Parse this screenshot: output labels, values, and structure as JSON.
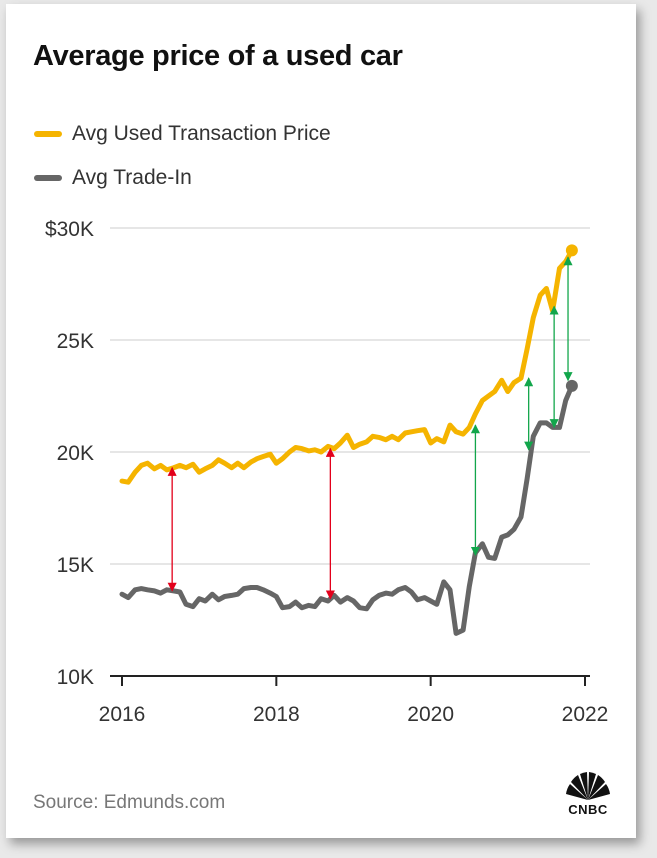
{
  "title": "Average price of a used car",
  "source": "Source: Edmunds.com",
  "brand": "CNBC",
  "colors": {
    "used": "#f5b400",
    "trade": "#666666",
    "gridline": "#cccccc",
    "red_arrow": "#e3001b",
    "green_arrow": "#12a64b"
  },
  "chart_data": {
    "type": "line",
    "title": "Average price of a used car",
    "xlabel": "",
    "ylabel": "",
    "xlim": [
      2016,
      2022
    ],
    "ylim": [
      10000,
      30000
    ],
    "x_ticks": [
      2016,
      2018,
      2020,
      2022
    ],
    "x_tick_labels": [
      "2016",
      "2018",
      "2020",
      "2022"
    ],
    "y_ticks": [
      10000,
      15000,
      20000,
      25000,
      30000
    ],
    "y_tick_labels": [
      "10K",
      "15K",
      "20K",
      "25K",
      "$30K"
    ],
    "grid": "horizontal",
    "legend": "top-left",
    "series": [
      {
        "name": "Avg Used Transaction Price",
        "color": "#f5b400",
        "end_marker": true,
        "points": [
          [
            2016.0,
            18700
          ],
          [
            2016.08,
            18650
          ],
          [
            2016.17,
            19100
          ],
          [
            2016.25,
            19400
          ],
          [
            2016.33,
            19500
          ],
          [
            2016.42,
            19250
          ],
          [
            2016.5,
            19400
          ],
          [
            2016.58,
            19200
          ],
          [
            2016.67,
            19300
          ],
          [
            2016.75,
            19400
          ],
          [
            2016.83,
            19300
          ],
          [
            2016.92,
            19450
          ],
          [
            2017.0,
            19100
          ],
          [
            2017.08,
            19250
          ],
          [
            2017.17,
            19400
          ],
          [
            2017.25,
            19650
          ],
          [
            2017.33,
            19500
          ],
          [
            2017.42,
            19300
          ],
          [
            2017.5,
            19500
          ],
          [
            2017.58,
            19300
          ],
          [
            2017.67,
            19550
          ],
          [
            2017.75,
            19700
          ],
          [
            2017.83,
            19800
          ],
          [
            2017.92,
            19900
          ],
          [
            2018.0,
            19500
          ],
          [
            2018.08,
            19700
          ],
          [
            2018.17,
            20000
          ],
          [
            2018.25,
            20200
          ],
          [
            2018.33,
            20150
          ],
          [
            2018.42,
            20050
          ],
          [
            2018.5,
            20100
          ],
          [
            2018.58,
            20000
          ],
          [
            2018.67,
            20250
          ],
          [
            2018.75,
            20150
          ],
          [
            2018.83,
            20400
          ],
          [
            2018.92,
            20750
          ],
          [
            2019.0,
            20200
          ],
          [
            2019.08,
            20350
          ],
          [
            2019.17,
            20450
          ],
          [
            2019.25,
            20700
          ],
          [
            2019.33,
            20650
          ],
          [
            2019.42,
            20550
          ],
          [
            2019.5,
            20700
          ],
          [
            2019.58,
            20550
          ],
          [
            2019.67,
            20850
          ],
          [
            2019.75,
            20900
          ],
          [
            2019.83,
            20950
          ],
          [
            2019.92,
            21000
          ],
          [
            2020.0,
            20400
          ],
          [
            2020.08,
            20600
          ],
          [
            2020.17,
            20450
          ],
          [
            2020.25,
            21200
          ],
          [
            2020.33,
            20900
          ],
          [
            2020.42,
            20800
          ],
          [
            2020.5,
            21100
          ],
          [
            2020.58,
            21700
          ],
          [
            2020.67,
            22300
          ],
          [
            2020.75,
            22500
          ],
          [
            2020.83,
            22700
          ],
          [
            2020.92,
            23200
          ],
          [
            2021.0,
            22700
          ],
          [
            2021.08,
            23100
          ],
          [
            2021.17,
            23300
          ],
          [
            2021.25,
            24600
          ],
          [
            2021.33,
            26000
          ],
          [
            2021.42,
            27000
          ],
          [
            2021.5,
            27300
          ],
          [
            2021.58,
            26300
          ],
          [
            2021.67,
            28200
          ],
          [
            2021.75,
            28500
          ],
          [
            2021.83,
            29000
          ]
        ]
      },
      {
        "name": "Avg Trade-In",
        "color": "#666666",
        "end_marker": true,
        "points": [
          [
            2016.0,
            13650
          ],
          [
            2016.08,
            13500
          ],
          [
            2016.17,
            13850
          ],
          [
            2016.25,
            13900
          ],
          [
            2016.33,
            13850
          ],
          [
            2016.42,
            13800
          ],
          [
            2016.5,
            13700
          ],
          [
            2016.58,
            13850
          ],
          [
            2016.67,
            13800
          ],
          [
            2016.75,
            13750
          ],
          [
            2016.83,
            13200
          ],
          [
            2016.92,
            13100
          ],
          [
            2017.0,
            13450
          ],
          [
            2017.08,
            13350
          ],
          [
            2017.17,
            13650
          ],
          [
            2017.25,
            13400
          ],
          [
            2017.33,
            13550
          ],
          [
            2017.42,
            13600
          ],
          [
            2017.5,
            13650
          ],
          [
            2017.58,
            13900
          ],
          [
            2017.67,
            13950
          ],
          [
            2017.75,
            13950
          ],
          [
            2017.83,
            13850
          ],
          [
            2017.92,
            13700
          ],
          [
            2018.0,
            13550
          ],
          [
            2018.08,
            13050
          ],
          [
            2018.17,
            13100
          ],
          [
            2018.25,
            13300
          ],
          [
            2018.33,
            13050
          ],
          [
            2018.42,
            13150
          ],
          [
            2018.5,
            13100
          ],
          [
            2018.58,
            13450
          ],
          [
            2018.67,
            13350
          ],
          [
            2018.75,
            13600
          ],
          [
            2018.83,
            13300
          ],
          [
            2018.92,
            13500
          ],
          [
            2019.0,
            13350
          ],
          [
            2019.08,
            13050
          ],
          [
            2019.17,
            13000
          ],
          [
            2019.25,
            13400
          ],
          [
            2019.33,
            13600
          ],
          [
            2019.42,
            13700
          ],
          [
            2019.5,
            13650
          ],
          [
            2019.58,
            13850
          ],
          [
            2019.67,
            13950
          ],
          [
            2019.75,
            13750
          ],
          [
            2019.83,
            13400
          ],
          [
            2019.92,
            13500
          ],
          [
            2020.0,
            13350
          ],
          [
            2020.08,
            13200
          ],
          [
            2020.17,
            14200
          ],
          [
            2020.25,
            13850
          ],
          [
            2020.33,
            11900
          ],
          [
            2020.42,
            12050
          ],
          [
            2020.5,
            14000
          ],
          [
            2020.58,
            15500
          ],
          [
            2020.67,
            15900
          ],
          [
            2020.75,
            15300
          ],
          [
            2020.83,
            15250
          ],
          [
            2020.92,
            16200
          ],
          [
            2021.0,
            16300
          ],
          [
            2021.08,
            16550
          ],
          [
            2021.17,
            17100
          ],
          [
            2021.25,
            18800
          ],
          [
            2021.33,
            20700
          ],
          [
            2021.42,
            21300
          ],
          [
            2021.5,
            21300
          ],
          [
            2021.58,
            21100
          ],
          [
            2021.67,
            21100
          ],
          [
            2021.75,
            22300
          ],
          [
            2021.83,
            22950
          ]
        ]
      }
    ],
    "annotations": [
      {
        "type": "double-arrow",
        "color": "red",
        "x": 2016.65,
        "y1": 19300,
        "y2": 13800
      },
      {
        "type": "double-arrow",
        "color": "red",
        "x": 2018.7,
        "y1": 20150,
        "y2": 13450
      },
      {
        "type": "double-arrow",
        "color": "green",
        "x": 2020.58,
        "y1": 21200,
        "y2": 15400
      },
      {
        "type": "double-arrow",
        "color": "green",
        "x": 2021.27,
        "y1": 23300,
        "y2": 20100
      },
      {
        "type": "double-arrow",
        "color": "green",
        "x": 2021.6,
        "y1": 26500,
        "y2": 21100
      },
      {
        "type": "double-arrow",
        "color": "green",
        "x": 2021.78,
        "y1": 28700,
        "y2": 23200
      }
    ]
  }
}
